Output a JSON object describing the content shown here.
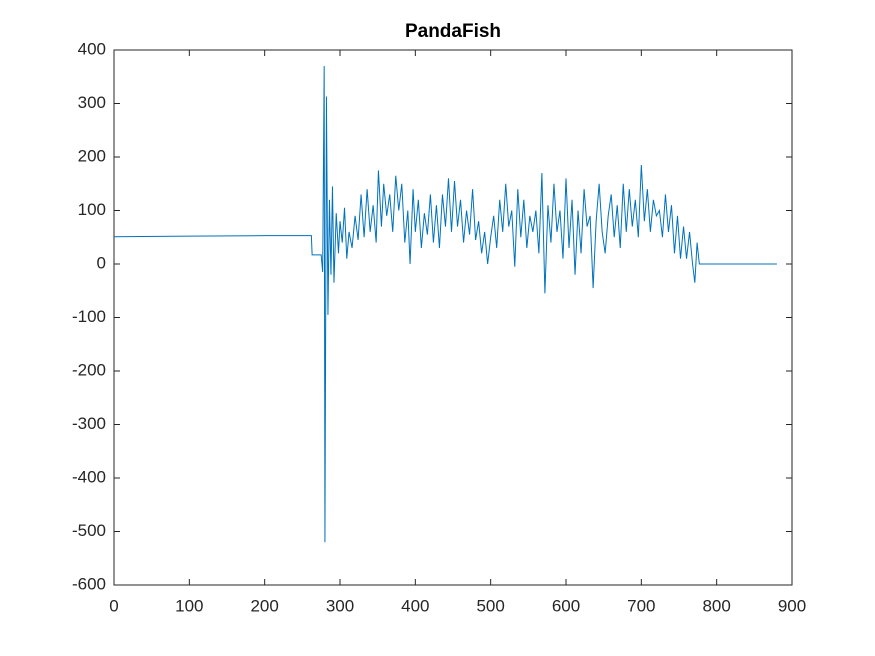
{
  "chart_data": {
    "type": "line",
    "title": "PandaFish",
    "x": [
      0,
      100,
      200,
      262,
      263,
      275,
      277,
      279,
      280,
      282,
      284,
      286,
      288,
      290,
      292,
      295,
      298,
      300,
      303,
      306,
      309,
      312,
      316,
      320,
      324,
      328,
      332,
      336,
      340,
      344,
      348,
      351,
      355,
      358,
      362,
      366,
      370,
      374,
      378,
      382,
      386,
      390,
      393,
      397,
      400,
      404,
      408,
      412,
      416,
      420,
      424,
      428,
      432,
      436,
      440,
      444,
      448,
      452,
      456,
      460,
      464,
      468,
      472,
      476,
      480,
      484,
      488,
      492,
      496,
      500,
      504,
      508,
      512,
      516,
      520,
      524,
      528,
      532,
      536,
      540,
      544,
      548,
      552,
      556,
      560,
      564,
      568,
      572,
      576,
      580,
      584,
      588,
      592,
      596,
      600,
      604,
      608,
      612,
      616,
      620,
      624,
      628,
      632,
      636,
      640,
      644,
      648,
      652,
      656,
      660,
      664,
      668,
      672,
      676,
      680,
      684,
      688,
      692,
      696,
      700,
      704,
      708,
      712,
      716,
      720,
      724,
      728,
      732,
      736,
      740,
      744,
      748,
      752,
      756,
      760,
      764,
      768,
      771,
      774,
      777,
      880
    ],
    "values": [
      51,
      52,
      53,
      53,
      17,
      17,
      -15,
      370,
      -520,
      313,
      -95,
      120,
      -20,
      145,
      -35,
      95,
      20,
      80,
      40,
      105,
      10,
      60,
      30,
      90,
      45,
      130,
      50,
      140,
      60,
      110,
      40,
      175,
      70,
      150,
      90,
      130,
      60,
      165,
      100,
      150,
      40,
      100,
      0,
      140,
      60,
      120,
      30,
      95,
      55,
      130,
      40,
      110,
      30,
      130,
      70,
      160,
      60,
      155,
      70,
      120,
      40,
      100,
      55,
      140,
      45,
      80,
      20,
      60,
      0,
      50,
      90,
      30,
      120,
      60,
      150,
      70,
      100,
      -5,
      140,
      50,
      120,
      30,
      90,
      60,
      100,
      20,
      170,
      -55,
      110,
      40,
      150,
      60,
      100,
      10,
      160,
      30,
      120,
      -20,
      100,
      20,
      140,
      70,
      90,
      -45,
      80,
      150,
      60,
      20,
      90,
      130,
      50,
      110,
      30,
      150,
      60,
      140,
      70,
      120,
      50,
      185,
      80,
      140,
      60,
      120,
      90,
      100,
      50,
      130,
      60,
      110,
      20,
      90,
      10,
      70,
      10,
      60,
      0,
      -35,
      40,
      0,
      0
    ],
    "color": "#0072bd",
    "xlim": [
      0,
      900
    ],
    "xticks": [
      0,
      100,
      200,
      300,
      400,
      500,
      600,
      700,
      800,
      900
    ],
    "ylim": [
      -600,
      400
    ],
    "yticks": [
      -600,
      -500,
      -400,
      -300,
      -200,
      -100,
      0,
      100,
      200,
      300,
      400
    ]
  }
}
